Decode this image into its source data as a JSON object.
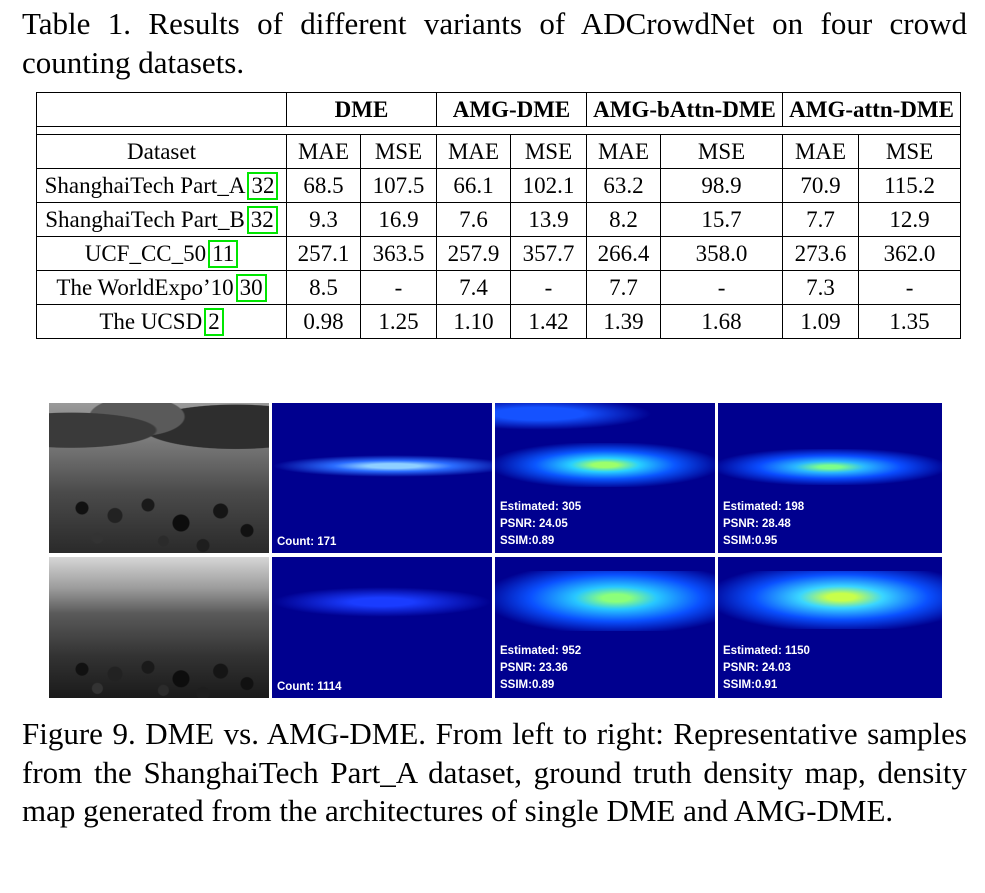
{
  "table_caption": "Table 1. Results of different variants of ADCrowdNet on four crowd counting datasets.",
  "table": {
    "groups": [
      "DME",
      "AMG-DME",
      "AMG-bAttn-DME",
      "AMG-attn-DME"
    ],
    "dataset_header": "Dataset",
    "metric_headers": [
      "MAE",
      "MSE",
      "MAE",
      "MSE",
      "MAE",
      "MSE",
      "MAE",
      "MSE"
    ],
    "rows": [
      {
        "name": "ShanghaiTech Part_A",
        "cite": "32",
        "values": [
          "68.5",
          "107.5",
          "66.1",
          "102.1",
          "63.2",
          "98.9",
          "70.9",
          "115.2"
        ]
      },
      {
        "name": "ShanghaiTech Part_B",
        "cite": "32",
        "values": [
          "9.3",
          "16.9",
          "7.6",
          "13.9",
          "8.2",
          "15.7",
          "7.7",
          "12.9"
        ]
      },
      {
        "name": "UCF_CC_50",
        "cite": "11",
        "values": [
          "257.1",
          "363.5",
          "257.9",
          "357.7",
          "266.4",
          "358.0",
          "273.6",
          "362.0"
        ]
      },
      {
        "name": "The WorldExpo’10",
        "cite": "30",
        "values": [
          "8.5",
          "-",
          "7.4",
          "-",
          "7.7",
          "-",
          "7.3",
          "-"
        ]
      },
      {
        "name": "The UCSD",
        "cite": "2",
        "values": [
          "0.98",
          "1.25",
          "1.10",
          "1.42",
          "1.39",
          "1.68",
          "1.09",
          "1.35"
        ]
      }
    ]
  },
  "figure": {
    "row1": {
      "gt_label": "Count: 171",
      "dme": {
        "estimated": "Estimated: 305",
        "psnr": "PSNR: 24.05",
        "ssim": "SSIM:0.89"
      },
      "amg": {
        "estimated": "Estimated: 198",
        "psnr": "PSNR: 28.48",
        "ssim": "SSIM:0.95"
      }
    },
    "row2": {
      "gt_label": "Count: 1114",
      "dme": {
        "estimated": "Estimated: 952",
        "psnr": "PSNR: 23.36",
        "ssim": "SSIM:0.89"
      },
      "amg": {
        "estimated": "Estimated: 1150",
        "psnr": "PSNR: 24.03",
        "ssim": "SSIM:0.91"
      }
    }
  },
  "figure_caption": "Figure 9. DME vs. AMG-DME. From left to right: Representative samples from the ShanghaiTech Part_A dataset, ground truth density map, density map generated from the architectures of single DME and AMG-DME."
}
